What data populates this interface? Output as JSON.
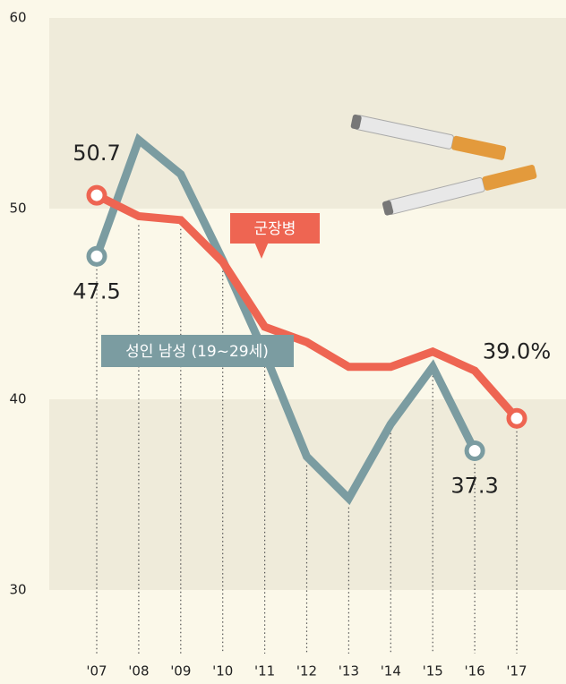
{
  "chart_data": {
    "type": "line",
    "categories": [
      "'07",
      "'08",
      "'09",
      "'10",
      "'11",
      "'12",
      "'13",
      "'14",
      "'15",
      "'16",
      "'17"
    ],
    "series": [
      {
        "name": "군장병",
        "color": "#ee6552",
        "values": [
          50.7,
          49.6,
          49.4,
          47.2,
          43.8,
          43.0,
          41.7,
          41.7,
          42.5,
          41.5,
          39.0
        ],
        "value_labels": [
          "50.7",
          null,
          null,
          null,
          null,
          null,
          null,
          null,
          null,
          null,
          "39.0%"
        ]
      },
      {
        "name": "성인 남성 (19~29세)",
        "color": "#7b9ca1",
        "values": [
          47.5,
          53.6,
          51.8,
          47.3,
          42.4,
          37.0,
          34.8,
          38.7,
          41.7,
          37.3,
          null
        ],
        "value_labels": [
          "47.5",
          null,
          null,
          null,
          null,
          null,
          null,
          null,
          null,
          "37.3",
          null
        ]
      }
    ],
    "ylim": [
      30,
      60
    ],
    "yticks": [
      30,
      40,
      50,
      60
    ]
  }
}
